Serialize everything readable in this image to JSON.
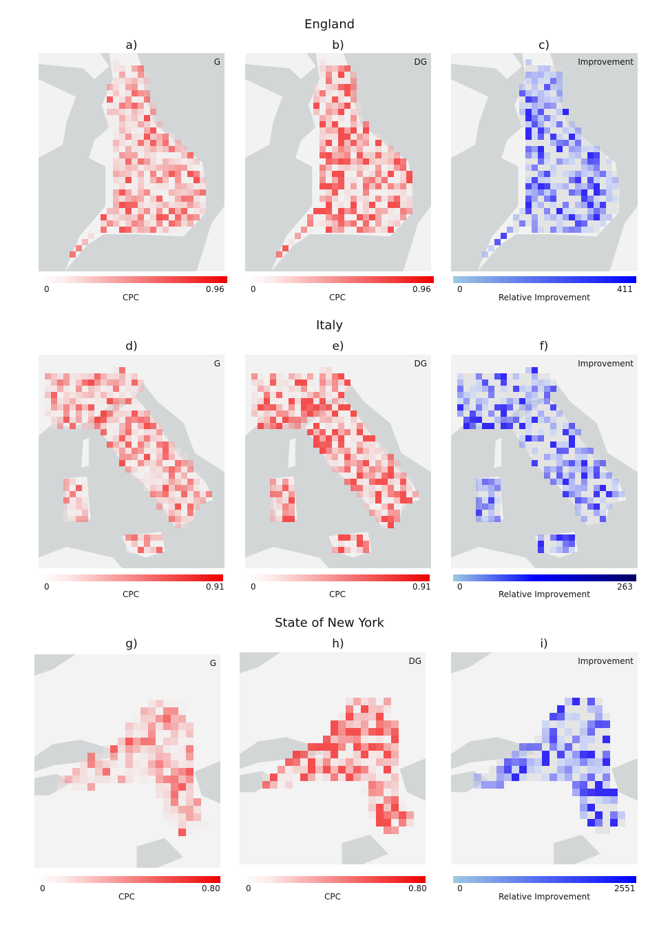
{
  "sections": [
    {
      "title": "England",
      "panels": [
        {
          "letter": "a)",
          "tag": "G",
          "cbar_min": "0",
          "cbar_max": "0.96",
          "cbar_label": "CPC",
          "scheme": "red"
        },
        {
          "letter": "b)",
          "tag": "DG",
          "cbar_min": "0",
          "cbar_max": "0.96",
          "cbar_label": "CPC",
          "scheme": "red"
        },
        {
          "letter": "c)",
          "tag": "Improvement",
          "cbar_min": "0",
          "cbar_max": "411",
          "cbar_label": "Relative Improvement",
          "scheme": "blue"
        }
      ]
    },
    {
      "title": "Italy",
      "panels": [
        {
          "letter": "d)",
          "tag": "G",
          "cbar_min": "0",
          "cbar_max": "0.91",
          "cbar_label": "CPC",
          "scheme": "red"
        },
        {
          "letter": "e)",
          "tag": "DG",
          "cbar_min": "0",
          "cbar_max": "0.91",
          "cbar_label": "CPC",
          "scheme": "red"
        },
        {
          "letter": "f)",
          "tag": "Improvement",
          "cbar_min": "0",
          "cbar_max": "263",
          "cbar_label": "Relative Improvement",
          "scheme": "blue"
        }
      ]
    },
    {
      "title": "State of New York",
      "panels": [
        {
          "letter": "g)",
          "tag": "G",
          "cbar_min": "0",
          "cbar_max": "0.80",
          "cbar_label": "CPC",
          "scheme": "red"
        },
        {
          "letter": "h)",
          "tag": "DG",
          "cbar_min": "0",
          "cbar_max": "0.80",
          "cbar_label": "CPC",
          "scheme": "red"
        },
        {
          "letter": "i)",
          "tag": "Improvement",
          "cbar_min": "0",
          "cbar_max": "2551",
          "cbar_label": "Relative Improvement",
          "scheme": "blue"
        }
      ]
    }
  ],
  "colors": {
    "sea": "#d3d6d7",
    "land": "#f2f2f2",
    "red_low": "#fde8e8",
    "red_high": "#ee0000",
    "blue_low": "#9ecae1",
    "blue_mid": "#0000ff",
    "blue_high": "#000060"
  }
}
